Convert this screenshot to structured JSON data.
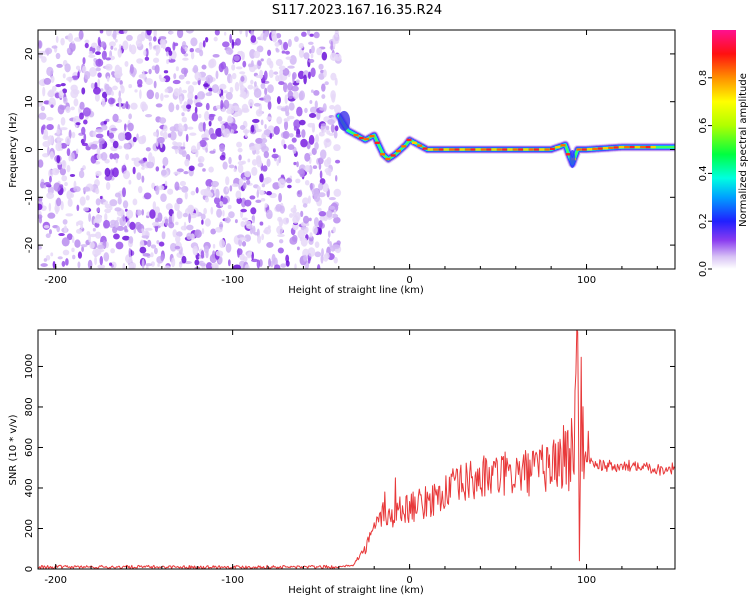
{
  "title": "S117.2023.167.16.35.R24",
  "colors": {
    "snr_line": "#e8393a",
    "frame": "#000000",
    "spectrogram_noise": "#7a1fe0"
  },
  "chart_data": [
    {
      "type": "heatmap",
      "xlabel": "Height of straight line (km)",
      "ylabel": "Frequency (Hz)",
      "xlim": [
        -210,
        150
      ],
      "ylim": [
        -25,
        25
      ],
      "x_ticks": [
        -200,
        -100,
        0,
        100
      ],
      "y_ticks": [
        -20,
        -10,
        0,
        10,
        20
      ],
      "colorbar": {
        "label": "Normalized spectral amplitude",
        "range": [
          0,
          1
        ],
        "ticks": [
          "0.0",
          "0.2",
          "0.4",
          "0.6",
          "0.8"
        ],
        "colormap": "rainbow"
      },
      "signal_onset_km": -40,
      "signal_ridge": {
        "x": [
          -40,
          -35,
          -30,
          -25,
          -20,
          -15,
          -12,
          -8,
          -5,
          -2,
          0,
          5,
          10,
          20,
          40,
          60,
          80,
          88,
          92,
          95,
          100,
          120,
          150
        ],
        "y": [
          7,
          4,
          3,
          2,
          3,
          -1,
          -2,
          -1,
          0,
          1,
          2,
          1,
          0,
          0,
          0,
          0,
          0,
          1,
          -3,
          0,
          0,
          0.5,
          0.5
        ]
      },
      "noise_x_range": [
        -210,
        -40
      ],
      "noise_y_range": [
        -25,
        25
      ]
    },
    {
      "type": "line",
      "xlabel": "Height of straight line (km)",
      "ylabel": "SNR (10 * v/v)",
      "xlim": [
        -210,
        150
      ],
      "ylim": [
        0,
        1180
      ],
      "x_ticks": [
        -200,
        -100,
        0,
        100
      ],
      "y_ticks": [
        0,
        200,
        400,
        600,
        800,
        1000
      ],
      "series": [
        {
          "color": "#e8393a",
          "anchors": {
            "x": [
              -210,
              -40,
              -32,
              -25,
              -20,
              -15,
              -10,
              -5,
              0,
              10,
              20,
              30,
              40,
              50,
              60,
              70,
              80,
              85,
              90,
              93,
              95,
              96,
              97,
              98,
              100,
              105,
              110,
              120,
              130,
              140,
              150
            ],
            "y": [
              10,
              10,
              20,
              100,
              200,
              280,
              250,
              300,
              300,
              330,
              380,
              420,
              450,
              460,
              470,
              480,
              510,
              540,
              560,
              600,
              1150,
              50,
              780,
              620,
              550,
              520,
              510,
              500,
              520,
              490,
              500
            ]
          },
          "spikes": {
            "x": [
              -8,
              -14,
              2,
              93.5,
              94.5,
              96.2,
              97.2,
              101
            ],
            "y": [
              450,
              380,
              380,
              880,
              1180,
              20,
              900,
              680
            ]
          }
        }
      ]
    }
  ]
}
